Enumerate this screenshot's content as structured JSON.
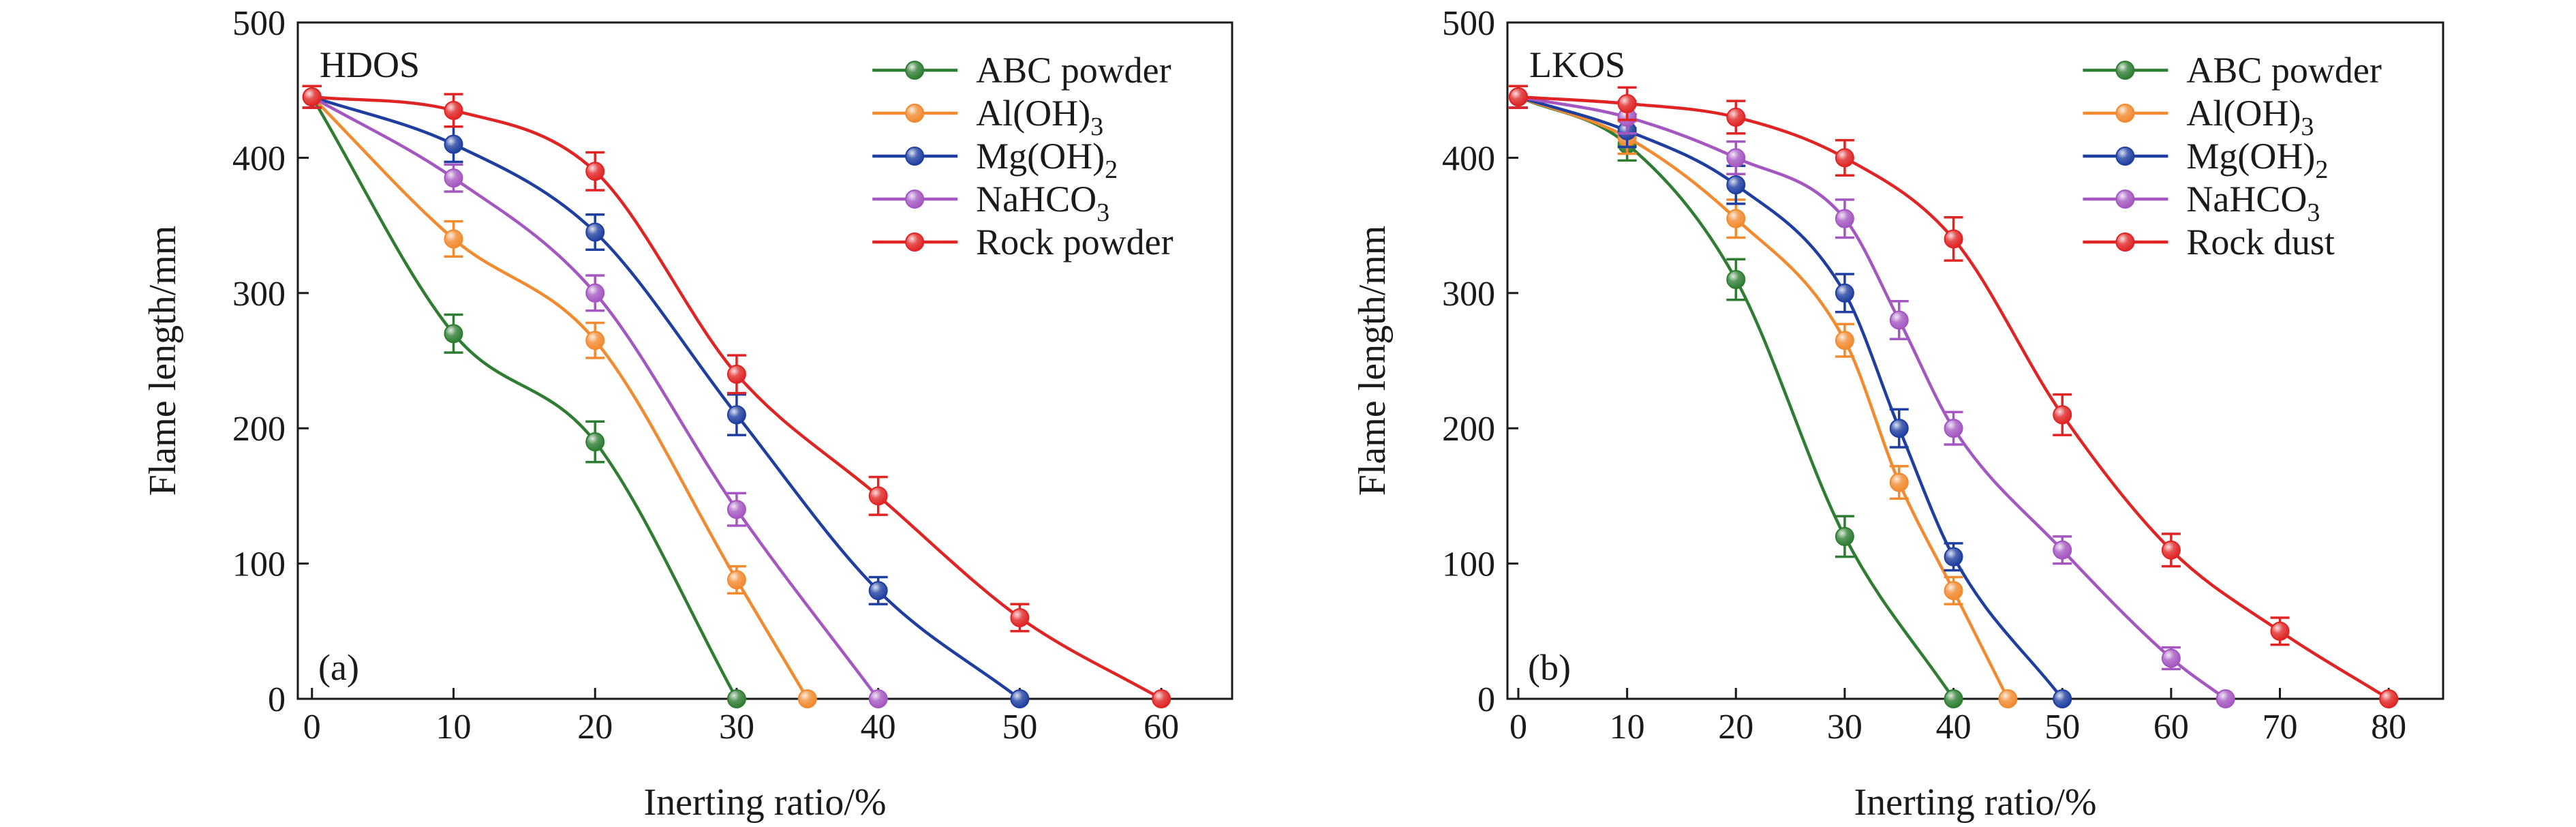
{
  "chart_data": [
    {
      "type": "line",
      "panel_label": "(a)",
      "inset_title": "HDOS",
      "xlabel": "Inerting ratio/%",
      "ylabel": "Flame length/mm",
      "xlim": [
        -1,
        65
      ],
      "ylim": [
        0,
        500
      ],
      "xticks": [
        "0",
        "10",
        "20",
        "30",
        "40",
        "50",
        "60"
      ],
      "yticks": [
        "0",
        "100",
        "200",
        "300",
        "400",
        "500"
      ],
      "legend_position": "top-right",
      "grid": false,
      "series": [
        {
          "name": "ABC powder",
          "label_main": "ABC powder",
          "label_sub": "",
          "color": "#2e7d32",
          "x": [
            0,
            10,
            20,
            30
          ],
          "y": [
            445,
            270,
            190,
            0
          ],
          "err": [
            8,
            14,
            15,
            0
          ]
        },
        {
          "name": "Al(OH)3",
          "label_main": "Al(OH)",
          "label_sub": "3",
          "color": "#f28a30",
          "x": [
            0,
            10,
            20,
            30,
            35
          ],
          "y": [
            445,
            340,
            265,
            88,
            0
          ],
          "err": [
            8,
            13,
            13,
            10,
            0
          ]
        },
        {
          "name": "Mg(OH)2",
          "label_main": "Mg(OH)",
          "label_sub": "2",
          "color": "#1f3fa0",
          "x": [
            0,
            10,
            20,
            30,
            40,
            50
          ],
          "y": [
            445,
            410,
            345,
            210,
            80,
            0
          ],
          "err": [
            8,
            13,
            13,
            15,
            10,
            0
          ]
        },
        {
          "name": "NaHCO3",
          "label_main": "NaHCO",
          "label_sub": "3",
          "color": "#a457c0",
          "x": [
            0,
            10,
            20,
            30,
            40
          ],
          "y": [
            445,
            385,
            300,
            140,
            0
          ],
          "err": [
            8,
            10,
            13,
            12,
            0
          ]
        },
        {
          "name": "Rock powder",
          "label_main": "Rock powder",
          "label_sub": "",
          "color": "#e02424",
          "x": [
            0,
            10,
            20,
            30,
            40,
            50,
            60
          ],
          "y": [
            445,
            435,
            390,
            240,
            150,
            60,
            0
          ],
          "err": [
            8,
            12,
            14,
            14,
            14,
            10,
            0
          ]
        }
      ]
    },
    {
      "type": "line",
      "panel_label": "(b)",
      "inset_title": "LKOS",
      "xlabel": "Inerting ratio/%",
      "ylabel": "Flame length/mm",
      "xlim": [
        -1,
        85
      ],
      "ylim": [
        0,
        500
      ],
      "xticks": [
        "0",
        "10",
        "20",
        "30",
        "40",
        "50",
        "60",
        "70",
        "80"
      ],
      "yticks": [
        "0",
        "100",
        "200",
        "300",
        "400",
        "500"
      ],
      "legend_position": "top-right",
      "grid": false,
      "series": [
        {
          "name": "ABC powder",
          "label_main": "ABC powder",
          "label_sub": "",
          "color": "#2e7d32",
          "x": [
            0,
            10,
            20,
            30,
            40
          ],
          "y": [
            445,
            410,
            310,
            120,
            0
          ],
          "err": [
            8,
            12,
            15,
            15,
            0
          ]
        },
        {
          "name": "Al(OH)3",
          "label_main": "Al(OH)",
          "label_sub": "3",
          "color": "#f28a30",
          "x": [
            0,
            10,
            20,
            30,
            35,
            40,
            45
          ],
          "y": [
            445,
            415,
            355,
            265,
            160,
            80,
            0
          ],
          "err": [
            8,
            12,
            14,
            12,
            12,
            10,
            0
          ]
        },
        {
          "name": "Mg(OH)2",
          "label_main": "Mg(OH)",
          "label_sub": "2",
          "color": "#1f3fa0",
          "x": [
            0,
            10,
            20,
            30,
            35,
            40,
            50
          ],
          "y": [
            445,
            420,
            380,
            300,
            200,
            105,
            0
          ],
          "err": [
            8,
            12,
            14,
            14,
            14,
            10,
            0
          ]
        },
        {
          "name": "NaHCO3",
          "label_main": "NaHCO",
          "label_sub": "3",
          "color": "#a457c0",
          "x": [
            0,
            10,
            20,
            30,
            35,
            40,
            50,
            60,
            65
          ],
          "y": [
            445,
            430,
            400,
            355,
            280,
            200,
            110,
            30,
            0
          ],
          "err": [
            8,
            12,
            12,
            14,
            14,
            12,
            10,
            8,
            0
          ]
        },
        {
          "name": "Rock dust",
          "label_main": "Rock dust",
          "label_sub": "",
          "color": "#e02424",
          "x": [
            0,
            10,
            20,
            30,
            40,
            50,
            60,
            70,
            80
          ],
          "y": [
            445,
            440,
            430,
            400,
            340,
            210,
            110,
            50,
            0
          ],
          "err": [
            8,
            12,
            12,
            13,
            16,
            15,
            12,
            10,
            0
          ]
        }
      ]
    }
  ]
}
